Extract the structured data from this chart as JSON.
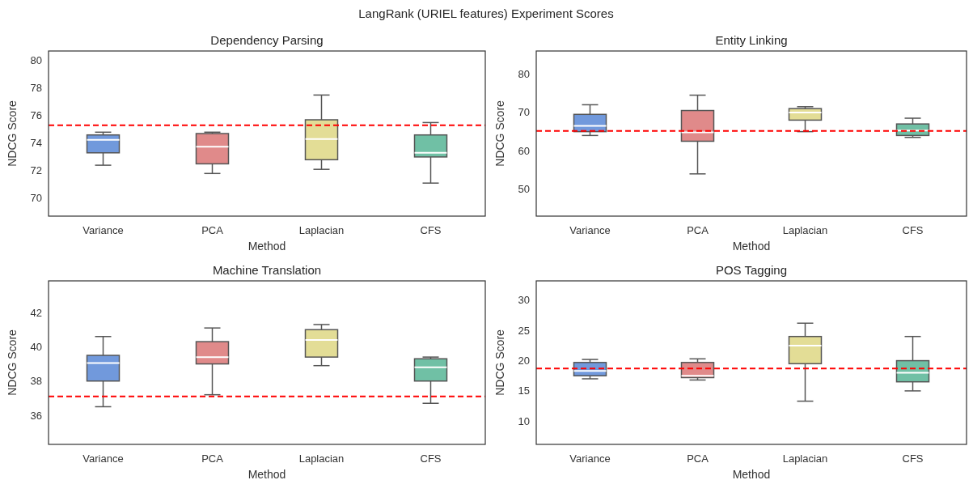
{
  "chart_data": [
    {
      "type": "box",
      "title": "Dependency Parsing",
      "annotations": [
        "LangRank (URIEL features) Experiment Scores"
      ],
      "xlabel": "Method",
      "ylabel": "NDCG Score",
      "categories": [
        "Variance",
        "PCA",
        "Laplacian",
        "CFS"
      ],
      "colors": [
        "#7199dc",
        "#e08a8a",
        "#e3dd96",
        "#70c0a5"
      ],
      "boxes": [
        {
          "low": 72.4,
          "q1": 73.3,
          "median": 74.25,
          "q3": 74.6,
          "high": 74.8
        },
        {
          "low": 71.8,
          "q1": 72.5,
          "median": 73.75,
          "q3": 74.7,
          "high": 74.8
        },
        {
          "low": 72.1,
          "q1": 72.8,
          "median": 74.3,
          "q3": 75.7,
          "high": 77.5
        },
        {
          "low": 71.1,
          "q1": 73.0,
          "median": 73.3,
          "q3": 74.6,
          "high": 75.5
        }
      ],
      "ylim": [
        68.7,
        80.7
      ],
      "yticks": [
        70,
        72,
        74,
        76,
        78,
        80
      ],
      "ref_lines": [
        {
          "axis": "y",
          "value": 75.3,
          "color": "#ff0000",
          "line_style": "dashed"
        }
      ]
    },
    {
      "type": "box",
      "title": "Entity Linking",
      "xlabel": "Method",
      "ylabel": "NDCG Score",
      "categories": [
        "Variance",
        "PCA",
        "Laplacian",
        "CFS"
      ],
      "colors": [
        "#7199dc",
        "#e08a8a",
        "#e3dd96",
        "#70c0a5"
      ],
      "boxes": [
        {
          "low": 64,
          "q1": 65,
          "median": 66.5,
          "q3": 69.5,
          "high": 72
        },
        {
          "low": 54,
          "q1": 62.5,
          "median": 64.8,
          "q3": 70.5,
          "high": 74.5
        },
        {
          "low": 65,
          "q1": 68,
          "median": 70,
          "q3": 71,
          "high": 71.5
        },
        {
          "low": 63.5,
          "q1": 64,
          "median": 65.3,
          "q3": 67,
          "high": 68.5
        }
      ],
      "ylim": [
        43,
        86
      ],
      "yticks": [
        50,
        60,
        70,
        80
      ],
      "ref_lines": [
        {
          "axis": "y",
          "value": 65.2,
          "color": "#ff0000",
          "line_style": "dashed"
        }
      ]
    },
    {
      "type": "box",
      "title": "Machine Translation",
      "xlabel": "Method",
      "ylabel": "NDCG Score",
      "categories": [
        "Variance",
        "PCA",
        "Laplacian",
        "CFS"
      ],
      "colors": [
        "#7199dc",
        "#e08a8a",
        "#e3dd96",
        "#70c0a5"
      ],
      "boxes": [
        {
          "low": 36.5,
          "q1": 38.0,
          "median": 39.05,
          "q3": 39.5,
          "high": 40.6
        },
        {
          "low": 37.2,
          "q1": 39.0,
          "median": 39.4,
          "q3": 40.3,
          "high": 41.1
        },
        {
          "low": 38.9,
          "q1": 39.4,
          "median": 40.4,
          "q3": 41.0,
          "high": 41.3
        },
        {
          "low": 36.7,
          "q1": 38.0,
          "median": 38.8,
          "q3": 39.3,
          "high": 39.4
        }
      ],
      "ylim": [
        34.3,
        43.85
      ],
      "yticks": [
        36,
        38,
        40,
        42
      ],
      "ref_lines": [
        {
          "axis": "y",
          "value": 37.1,
          "color": "#ff0000",
          "line_style": "dashed"
        }
      ]
    },
    {
      "type": "box",
      "title": "POS Tagging",
      "xlabel": "Method",
      "ylabel": "NDCG Score",
      "categories": [
        "Variance",
        "PCA",
        "Laplacian",
        "CFS"
      ],
      "colors": [
        "#7199dc",
        "#e08a8a",
        "#e3dd96",
        "#70c0a5"
      ],
      "boxes": [
        {
          "low": 17,
          "q1": 17.5,
          "median": 18.3,
          "q3": 19.7,
          "high": 20.2
        },
        {
          "low": 16.8,
          "q1": 17.2,
          "median": 17.5,
          "q3": 19.7,
          "high": 20.3
        },
        {
          "low": 13.3,
          "q1": 19.5,
          "median": 22.5,
          "q3": 24.0,
          "high": 26.2
        },
        {
          "low": 15,
          "q1": 16.5,
          "median": 18,
          "q3": 20,
          "high": 24
        }
      ],
      "ylim": [
        6.15,
        33.2
      ],
      "yticks": [
        10,
        15,
        20,
        25,
        30
      ],
      "ref_lines": [
        {
          "axis": "y",
          "value": 18.7,
          "color": "#ff0000",
          "line_style": "dashed"
        }
      ]
    }
  ]
}
